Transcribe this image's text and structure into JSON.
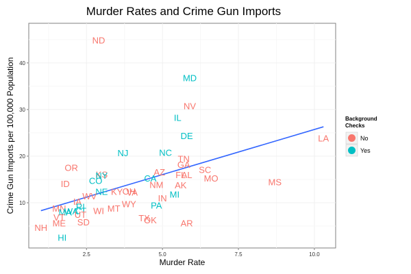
{
  "chart_data": {
    "type": "scatter",
    "title": "Murder Rates and Crime Gun Imports",
    "xlabel": "Murder Rate",
    "ylabel": "Crime Gun Imports per 100,000 Population",
    "xlim": [
      0.6,
      10.7
    ],
    "ylim": [
      0.3,
      48.5
    ],
    "x_ticks": [
      2.5,
      5.0,
      7.5,
      10.0
    ],
    "x_tick_labels": [
      "2.5",
      "5.0",
      "7.5",
      "10.0"
    ],
    "y_ticks": [
      10,
      20,
      30,
      40
    ],
    "y_tick_labels": [
      "10",
      "20",
      "30",
      "40"
    ],
    "grid": true,
    "legend": {
      "title": "Background Checks",
      "position": "right",
      "entries": [
        {
          "label": "No",
          "color": "#F8766D"
        },
        {
          "label": "Yes",
          "color": "#00BFC4"
        }
      ]
    },
    "colors": {
      "No": "#F8766D",
      "Yes": "#00BFC4",
      "fit_line": "#3366FF"
    },
    "fit_line": {
      "x": [
        1.0,
        10.3
      ],
      "y": [
        8.3,
        26.3
      ]
    },
    "points": [
      {
        "label": "ND",
        "x": 2.9,
        "y": 44.9,
        "group": "No"
      },
      {
        "label": "MD",
        "x": 5.9,
        "y": 36.8,
        "group": "Yes"
      },
      {
        "label": "NV",
        "x": 5.9,
        "y": 30.8,
        "group": "No"
      },
      {
        "label": "IL",
        "x": 5.5,
        "y": 28.3,
        "group": "Yes"
      },
      {
        "label": "DE",
        "x": 5.8,
        "y": 24.4,
        "group": "Yes"
      },
      {
        "label": "LA",
        "x": 10.3,
        "y": 23.9,
        "group": "No"
      },
      {
        "label": "NJ",
        "x": 3.7,
        "y": 20.7,
        "group": "Yes"
      },
      {
        "label": "NC",
        "x": 5.1,
        "y": 20.8,
        "group": "Yes"
      },
      {
        "label": "TN",
        "x": 5.7,
        "y": 19.5,
        "group": "No"
      },
      {
        "label": "GA",
        "x": 5.7,
        "y": 18.2,
        "group": "No"
      },
      {
        "label": "OR",
        "x": 2.0,
        "y": 17.6,
        "group": "No"
      },
      {
        "label": "SC",
        "x": 6.4,
        "y": 17.1,
        "group": "No"
      },
      {
        "label": "AZ",
        "x": 4.9,
        "y": 16.6,
        "group": "No"
      },
      {
        "label": "AL",
        "x": 5.8,
        "y": 16.0,
        "group": "No"
      },
      {
        "label": "FL",
        "x": 5.6,
        "y": 16.0,
        "group": "No"
      },
      {
        "label": "KS",
        "x": 3.0,
        "y": 16.1,
        "group": "No"
      },
      {
        "label": "NY",
        "x": 3.0,
        "y": 15.9,
        "group": "Yes"
      },
      {
        "label": "MO",
        "x": 6.6,
        "y": 15.3,
        "group": "No"
      },
      {
        "label": "CA",
        "x": 4.6,
        "y": 15.3,
        "group": "Yes"
      },
      {
        "label": "CO",
        "x": 2.8,
        "y": 14.8,
        "group": "Yes"
      },
      {
        "label": "MS",
        "x": 8.7,
        "y": 14.5,
        "group": "No"
      },
      {
        "label": "ID",
        "x": 1.8,
        "y": 14.1,
        "group": "No"
      },
      {
        "label": "NM",
        "x": 4.8,
        "y": 13.9,
        "group": "No"
      },
      {
        "label": "AK",
        "x": 5.6,
        "y": 13.8,
        "group": "No"
      },
      {
        "label": "NE",
        "x": 3.0,
        "y": 12.4,
        "group": "Yes"
      },
      {
        "label": "OH",
        "x": 3.9,
        "y": 12.5,
        "group": "No"
      },
      {
        "label": "KY",
        "x": 3.5,
        "y": 12.4,
        "group": "No"
      },
      {
        "label": "VA",
        "x": 4.0,
        "y": 12.3,
        "group": "No"
      },
      {
        "label": "MI",
        "x": 5.4,
        "y": 11.8,
        "group": "Yes"
      },
      {
        "label": "WV",
        "x": 2.6,
        "y": 11.5,
        "group": "No"
      },
      {
        "label": "IN",
        "x": 5.0,
        "y": 11.0,
        "group": "No"
      },
      {
        "label": "IA",
        "x": 2.2,
        "y": 10.3,
        "group": "No"
      },
      {
        "label": "WY",
        "x": 3.9,
        "y": 9.8,
        "group": "No"
      },
      {
        "label": "PA",
        "x": 4.8,
        "y": 9.5,
        "group": "Yes"
      },
      {
        "label": "RI",
        "x": 2.3,
        "y": 9.2,
        "group": "Yes"
      },
      {
        "label": "MT",
        "x": 3.4,
        "y": 8.8,
        "group": "No"
      },
      {
        "label": "MN",
        "x": 1.6,
        "y": 8.8,
        "group": "No"
      },
      {
        "label": "CT",
        "x": 2.3,
        "y": 8.3,
        "group": "Yes"
      },
      {
        "label": "WI",
        "x": 2.9,
        "y": 8.3,
        "group": "No"
      },
      {
        "label": "WA",
        "x": 2.0,
        "y": 8.2,
        "group": "Yes"
      },
      {
        "label": "MA",
        "x": 1.8,
        "y": 8.0,
        "group": "Yes"
      },
      {
        "label": "UT",
        "x": 2.3,
        "y": 7.5,
        "group": "No"
      },
      {
        "label": "VT",
        "x": 1.6,
        "y": 6.9,
        "group": "No"
      },
      {
        "label": "TX",
        "x": 4.4,
        "y": 6.8,
        "group": "No"
      },
      {
        "label": "OK",
        "x": 4.6,
        "y": 6.3,
        "group": "No"
      },
      {
        "label": "ME",
        "x": 1.6,
        "y": 5.7,
        "group": "No"
      },
      {
        "label": "SD",
        "x": 2.4,
        "y": 5.9,
        "group": "No"
      },
      {
        "label": "AR",
        "x": 5.8,
        "y": 5.7,
        "group": "No"
      },
      {
        "label": "NH",
        "x": 1.0,
        "y": 4.7,
        "group": "No"
      },
      {
        "label": "HI",
        "x": 1.7,
        "y": 2.6,
        "group": "Yes"
      }
    ]
  }
}
